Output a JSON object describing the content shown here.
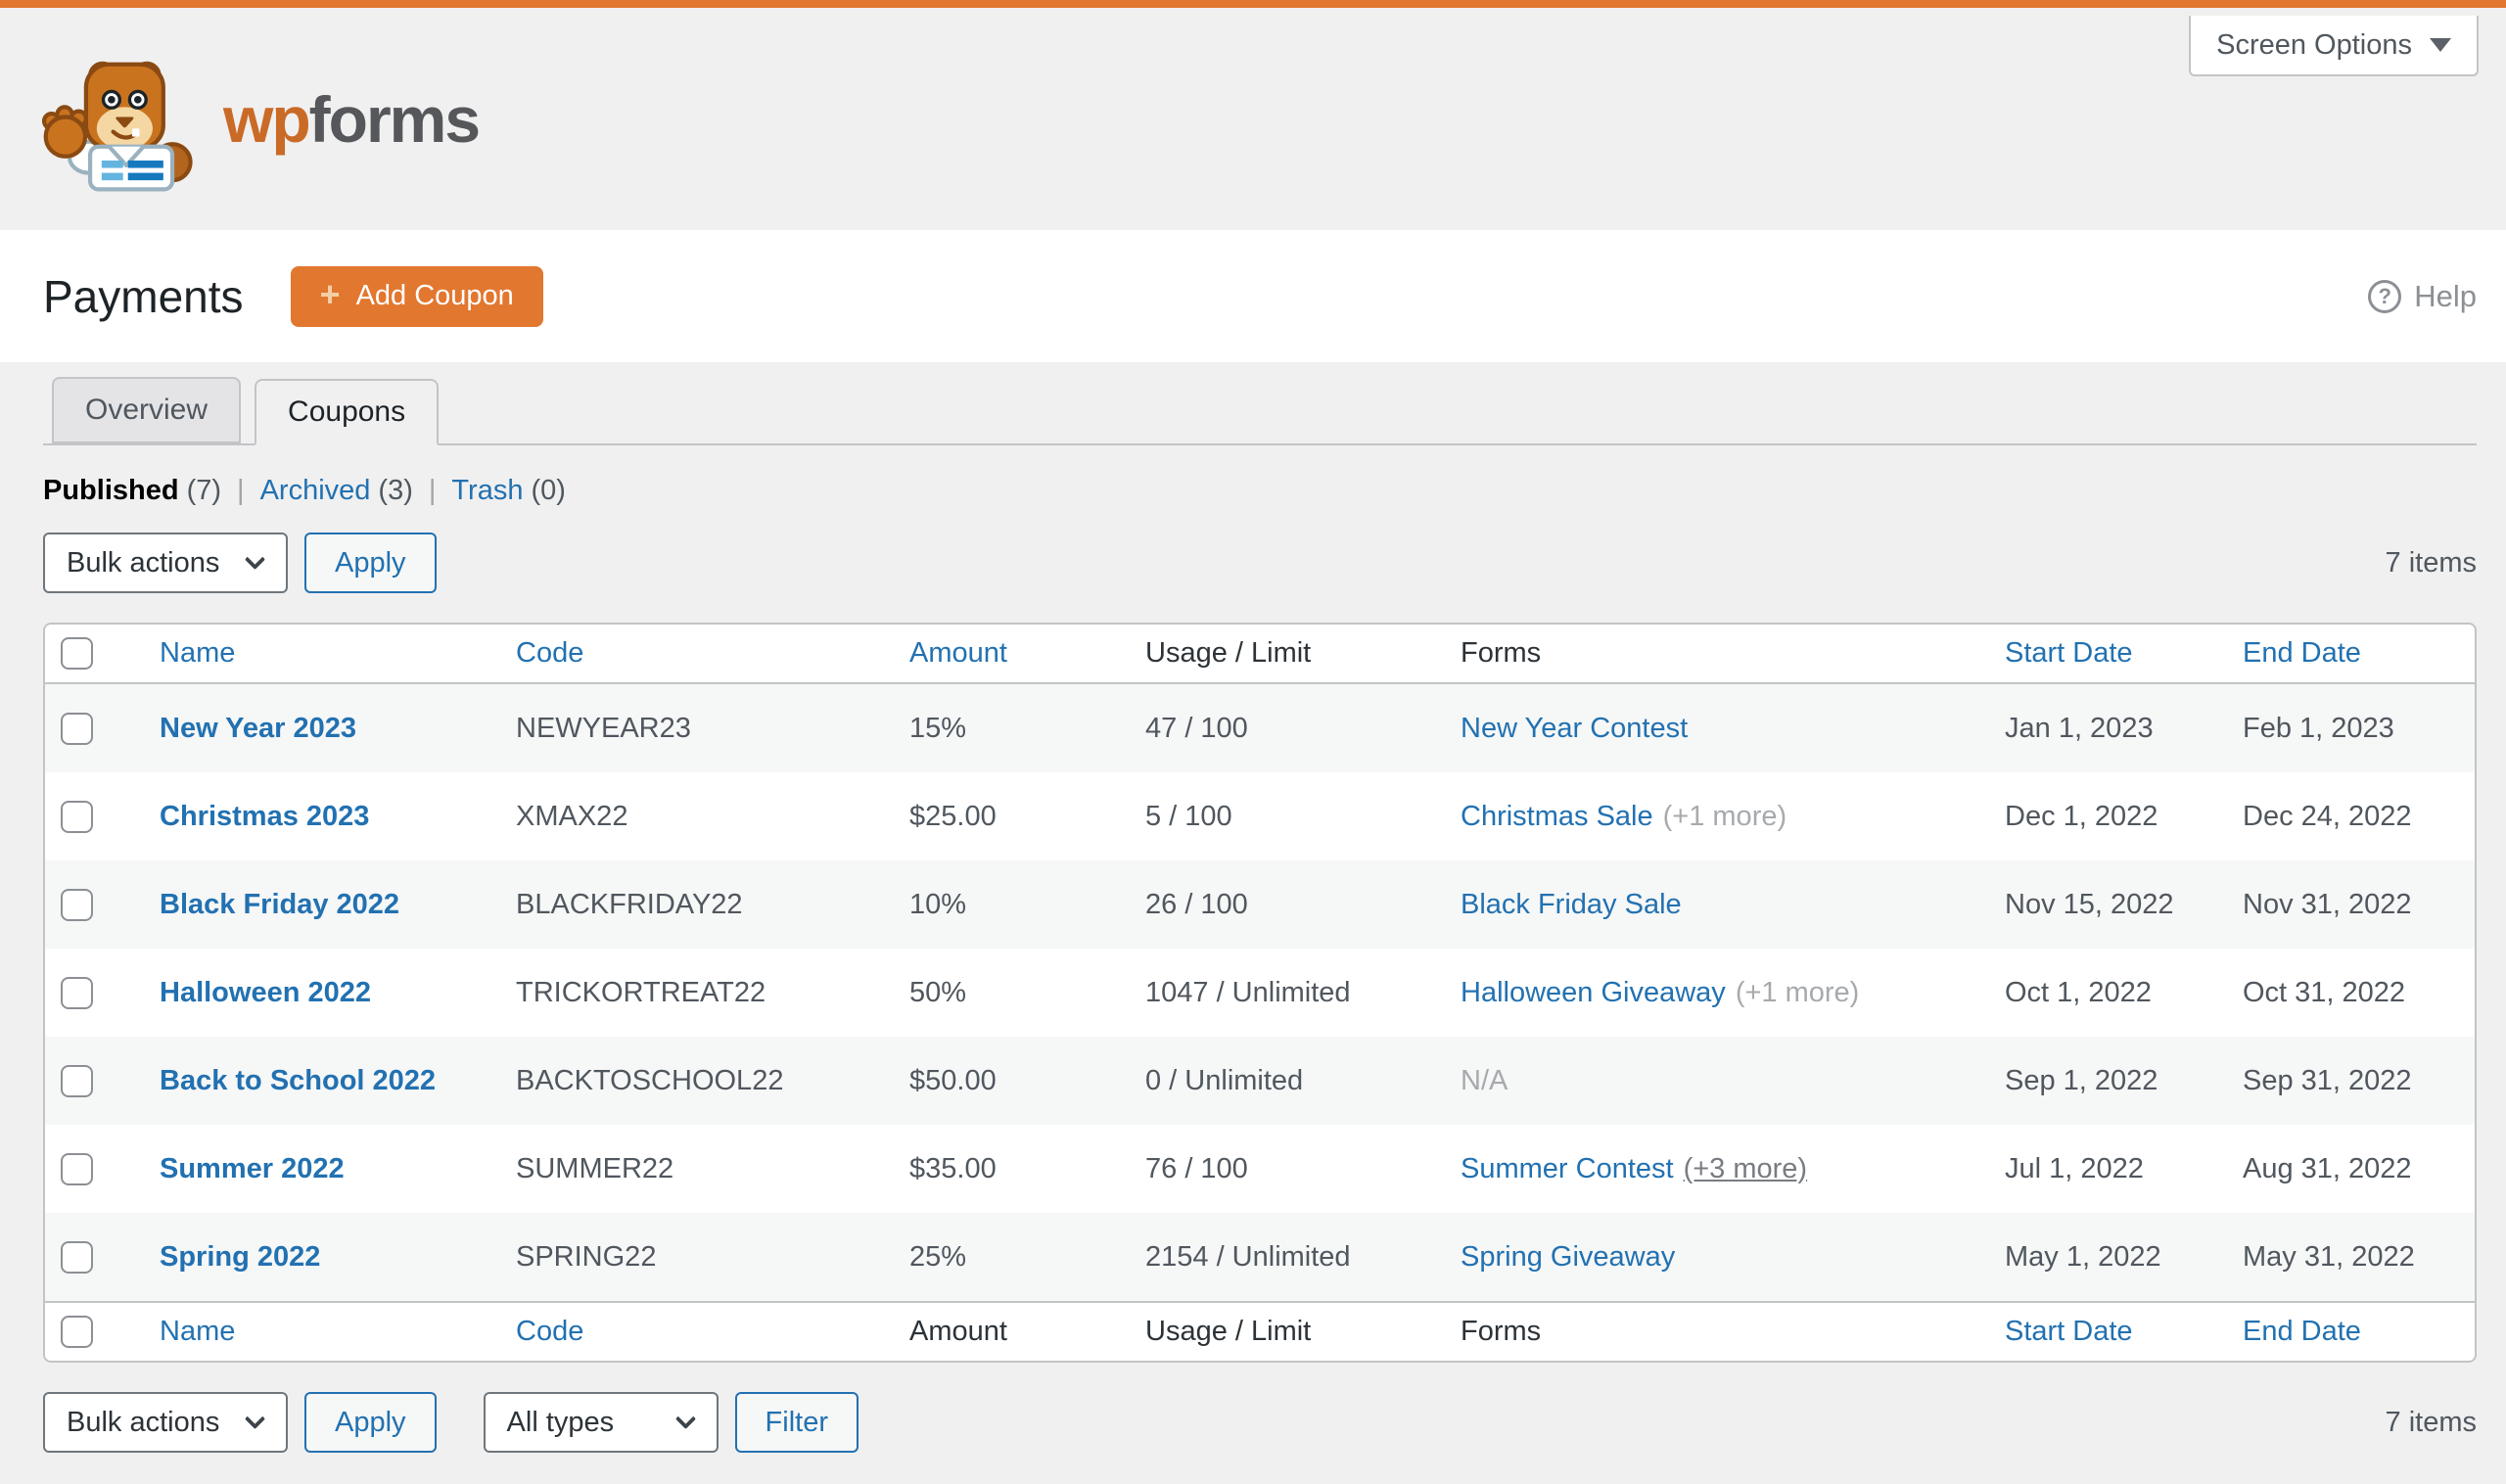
{
  "colors": {
    "brand_orange": "#e27730",
    "link_blue": "#2271b1",
    "page_background": "#f0f0f1",
    "stripe_row": "#f6f7f7",
    "border_gray": "#c3c4c7"
  },
  "topbar": {
    "screen_options_label": "Screen Options"
  },
  "brand": {
    "logo_wp": "wp",
    "logo_forms": "forms"
  },
  "page_header": {
    "title": "Payments",
    "add_coupon_label": "Add Coupon",
    "plus": "+",
    "help_label": "Help",
    "help_icon_glyph": "?"
  },
  "tabs": [
    {
      "label": "Overview",
      "active": false
    },
    {
      "label": "Coupons",
      "active": true
    }
  ],
  "status_filters_separator": "|",
  "status_filters": [
    {
      "label": "Published",
      "count": "(7)",
      "current": true
    },
    {
      "label": "Archived",
      "count": "(3)",
      "current": false
    },
    {
      "label": "Trash",
      "count": "(0)",
      "current": false
    }
  ],
  "toolbar_top": {
    "bulk_actions_label": "Bulk actions",
    "apply_label": "Apply",
    "items_count": "7 items"
  },
  "toolbar_bottom": {
    "bulk_actions_label": "Bulk actions",
    "apply_label": "Apply",
    "type_filter_label": "All types",
    "filter_label": "Filter",
    "items_count": "7 items"
  },
  "table": {
    "columns": [
      {
        "label": "",
        "type": "checkbox",
        "header_link": false,
        "footer_link": false
      },
      {
        "label": "Name",
        "header_link": true,
        "footer_link": true
      },
      {
        "label": "Code",
        "header_link": true,
        "footer_link": true
      },
      {
        "label": "Amount",
        "header_link": true,
        "footer_link": false
      },
      {
        "label": "Usage / Limit",
        "header_link": false,
        "footer_link": false
      },
      {
        "label": "Forms",
        "header_link": false,
        "footer_link": false
      },
      {
        "label": "Start Date",
        "header_link": true,
        "footer_link": true
      },
      {
        "label": "End Date",
        "header_link": true,
        "footer_link": true
      }
    ],
    "rows": [
      {
        "name": "New Year 2023",
        "code": "NEWYEAR23",
        "amount": "15%",
        "usage": "47 / 100",
        "form_link": "New Year Contest",
        "form_extra": "",
        "start": "Jan 1, 2023",
        "end": "Feb 1, 2023"
      },
      {
        "name": "Christmas 2023",
        "code": "XMAX22",
        "amount": "$25.00",
        "usage": "5 / 100",
        "form_link": "Christmas Sale",
        "form_extra": "(+1 more)",
        "start": "Dec 1, 2022",
        "end": "Dec 24, 2022"
      },
      {
        "name": "Black Friday 2022",
        "code": "BLACKFRIDAY22",
        "amount": "10%",
        "usage": "26 / 100",
        "form_link": "Black Friday Sale",
        "form_extra": "",
        "start": "Nov 15, 2022",
        "end": "Nov 31, 2022"
      },
      {
        "name": "Halloween 2022",
        "code": "TRICKORTREAT22",
        "amount": "50%",
        "usage": "1047 / Unlimited",
        "form_link": "Halloween Giveaway",
        "form_extra": "(+1 more)",
        "start": "Oct 1, 2022",
        "end": "Oct 31, 2022"
      },
      {
        "name": "Back to School 2022",
        "code": "BACKTOSCHOOL22",
        "amount": "$50.00",
        "usage": "0 / Unlimited",
        "form_na": "N/A",
        "start": "Sep 1, 2022",
        "end": "Sep 31, 2022"
      },
      {
        "name": "Summer 2022",
        "code": "SUMMER22",
        "amount": "$35.00",
        "usage": "76 / 100",
        "form_link": "Summer Contest",
        "form_extra": "(+3 more)",
        "form_extra_underlined": true,
        "start": "Jul 1, 2022",
        "end": "Aug 31, 2022"
      },
      {
        "name": "Spring 2022",
        "code": "SPRING22",
        "amount": "25%",
        "usage": "2154 / Unlimited",
        "form_link": "Spring Giveaway",
        "form_extra": "",
        "start": "May 1, 2022",
        "end": "May 31, 2022"
      }
    ]
  }
}
